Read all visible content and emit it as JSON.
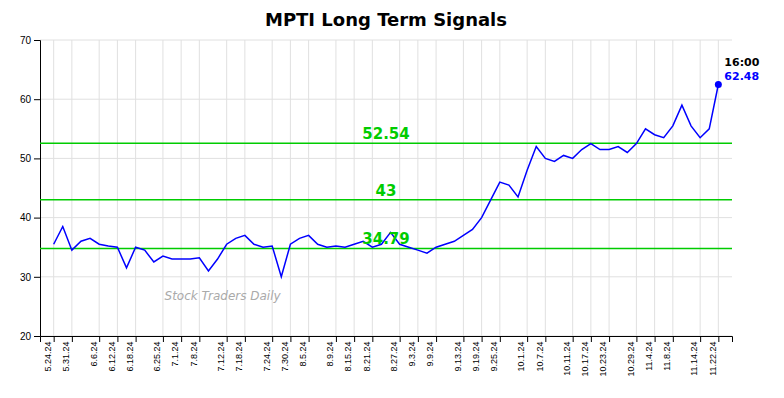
{
  "chart_data": {
    "type": "line",
    "title": "MPTI Long Term Signals",
    "categories": [
      "5.24.24",
      null,
      "5.31.24",
      null,
      null,
      "6.6.24",
      null,
      "6.12.24",
      null,
      "6.18.24",
      null,
      null,
      "6.25.24",
      null,
      "7.1.24",
      null,
      "7.8.24",
      null,
      null,
      "7.12.24",
      null,
      "7.18.24",
      null,
      null,
      "7.24.24",
      null,
      "7.30.24",
      null,
      "8.5.24",
      null,
      null,
      "8.9.24",
      null,
      "8.15.24",
      null,
      "8.21.24",
      null,
      null,
      "8.27.24",
      null,
      "9.3.24",
      null,
      "9.9.24",
      null,
      null,
      "9.13.24",
      null,
      "9.19.24",
      null,
      "9.25.24",
      null,
      null,
      "10.1.24",
      null,
      "10.7.24",
      null,
      null,
      "10.11.24",
      null,
      "10.17.24",
      null,
      "10.23.24",
      null,
      null,
      "10.29.24",
      null,
      "11.4.24",
      null,
      "11.8.24",
      null,
      null,
      "11.14.24",
      null,
      "11.22.24"
    ],
    "series": [
      {
        "color": "blue",
        "values": [
          35.5,
          38.5,
          34.5,
          36.0,
          36.5,
          35.5,
          35.2,
          35.0,
          31.5,
          35.0,
          34.5,
          32.5,
          33.5,
          33.0,
          33.0,
          33.0,
          33.2,
          31.0,
          33.0,
          35.5,
          36.5,
          37.0,
          35.5,
          35.0,
          35.2,
          30.0,
          35.5,
          36.5,
          37.0,
          35.5,
          35.0,
          35.2,
          35.0,
          35.5,
          36.0,
          35.0,
          35.5,
          37.5,
          35.5,
          35.0,
          34.5,
          34.0,
          35.0,
          35.5,
          36.0,
          37.0,
          38.0,
          40.0,
          43.0,
          46.0,
          45.5,
          43.5,
          48.0,
          52.0,
          50.0,
          49.5,
          50.5,
          50.0,
          51.5,
          52.5,
          51.5,
          51.5,
          52.0,
          51.0,
          52.5,
          55.0,
          54.0,
          53.5,
          55.5,
          59.0,
          55.5,
          53.5,
          55.0,
          62.48
        ]
      }
    ],
    "ylim": [
      20,
      70
    ],
    "yticks": [
      20,
      30,
      40,
      50,
      60,
      70
    ],
    "grid": true,
    "annotations": [
      {
        "type": "hline",
        "y": 34.79,
        "text": "34.79",
        "color": "#00cc00"
      },
      {
        "type": "hline",
        "y": 43,
        "text": "43",
        "color": "#00cc00"
      },
      {
        "type": "hline",
        "y": 52.54,
        "text": "52.54",
        "color": "#00cc00"
      },
      {
        "type": "point_label",
        "text": "16:00",
        "color": "black"
      },
      {
        "type": "point_label",
        "text": "62.48",
        "color": "blue"
      },
      {
        "type": "watermark",
        "text": "Stock Traders Daily"
      }
    ]
  }
}
